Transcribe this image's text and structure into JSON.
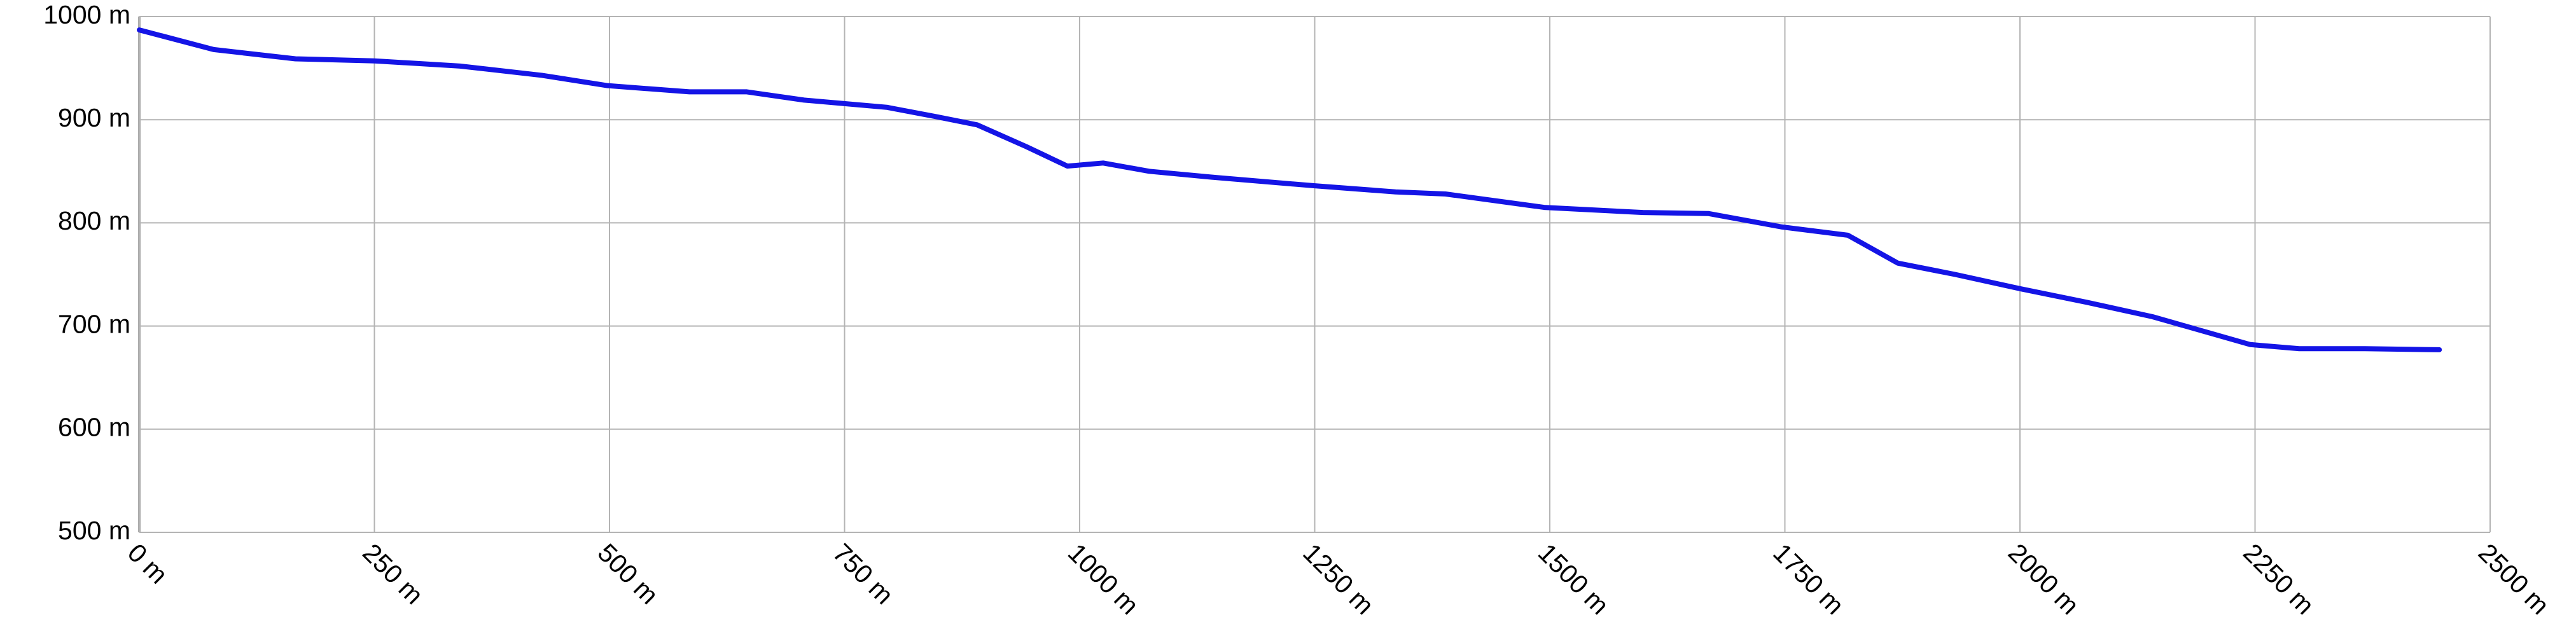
{
  "chart_data": {
    "type": "line",
    "x": [
      0,
      79,
      166,
      250,
      341,
      428,
      498,
      585,
      646,
      707,
      795,
      847,
      891,
      943,
      987,
      1025,
      1074,
      1144,
      1249,
      1336,
      1389,
      1494,
      1599,
      1669,
      1747,
      1817,
      1870,
      1931,
      2001,
      2071,
      2141,
      2245,
      2297,
      2367,
      2446
    ],
    "series": [
      {
        "color": "#1414e6",
        "values": [
          987,
          968,
          959,
          957,
          952,
          943,
          933,
          927,
          927,
          919,
          912,
          903,
          895,
          874,
          855,
          858,
          850,
          844,
          836,
          830,
          828,
          815,
          810,
          809,
          796,
          788,
          761,
          750,
          736,
          723,
          709,
          682,
          678,
          678,
          677
        ]
      }
    ],
    "xlim": [
      0,
      2500
    ],
    "xticks": [
      {
        "value": 0,
        "label": "0 m"
      },
      {
        "value": 250,
        "label": "250 m"
      },
      {
        "value": 500,
        "label": "500 m"
      },
      {
        "value": 750,
        "label": "750 m"
      },
      {
        "value": 1000,
        "label": "1000 m"
      },
      {
        "value": 1250,
        "label": "1250 m"
      },
      {
        "value": 1500,
        "label": "1500 m"
      },
      {
        "value": 1750,
        "label": "1750 m"
      },
      {
        "value": 2000,
        "label": "2000 m"
      },
      {
        "value": 2250,
        "label": "2250 m"
      },
      {
        "value": 2500,
        "label": "2500 m"
      }
    ],
    "ylim": [
      500,
      1000
    ],
    "yticks": [
      {
        "value": 500,
        "label": "500 m"
      },
      {
        "value": 600,
        "label": "600 m"
      },
      {
        "value": 700,
        "label": "700 m"
      },
      {
        "value": 800,
        "label": "800 m"
      },
      {
        "value": 900,
        "label": "900 m"
      },
      {
        "value": 1000,
        "label": "1000 m"
      }
    ],
    "grid": true
  }
}
